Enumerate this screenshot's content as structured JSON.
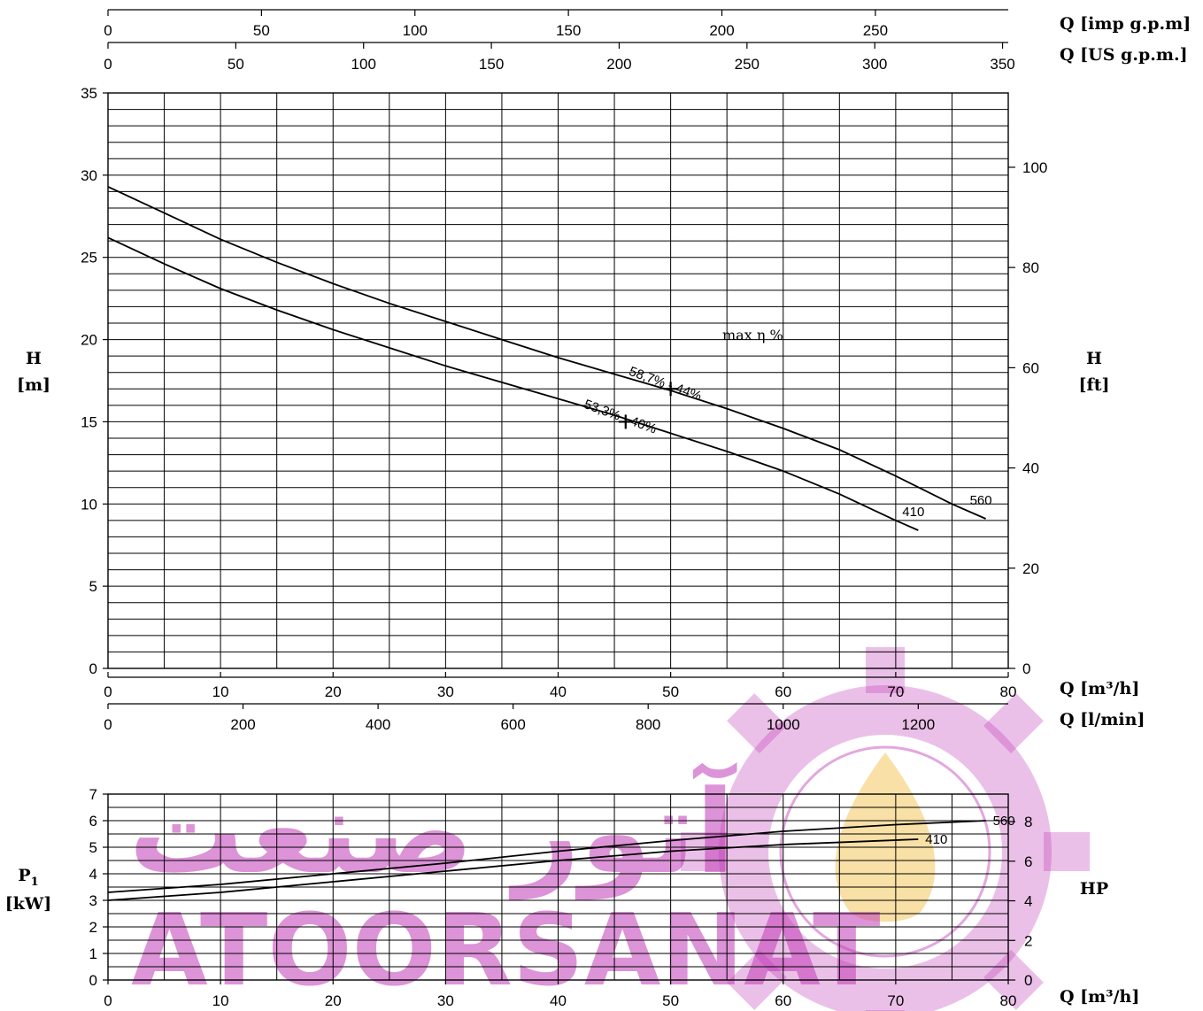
{
  "watermark": {
    "latin": "ATOORSANAT",
    "persian": "آتور صنعت",
    "color": "#c23cb8",
    "flame_color": "#f2c14e"
  },
  "chart_data": [
    {
      "type": "line",
      "x_axis_bottom": {
        "label": "Q [m³/h]",
        "range": [
          0,
          80
        ],
        "ticks": [
          0,
          10,
          20,
          30,
          40,
          50,
          60,
          70,
          80
        ]
      },
      "x_axis_bottom2": {
        "label": "Q [l/min]",
        "ticks": [
          0,
          200,
          400,
          600,
          800,
          1000,
          1200
        ]
      },
      "x_axis_top1": {
        "label": "Q [imp g.p.m]",
        "ticks": [
          0,
          50,
          100,
          150,
          200,
          250
        ]
      },
      "x_axis_top2": {
        "label": "Q [US g.p.m.]",
        "ticks": [
          0,
          50,
          100,
          150,
          200,
          250,
          300,
          350
        ]
      },
      "y_axis_left": {
        "label_line1": "H",
        "label_line2": "[m]",
        "range": [
          0,
          35
        ],
        "ticks": [
          0,
          5,
          10,
          15,
          20,
          25,
          30,
          35
        ]
      },
      "y_axis_right": {
        "label_line1": "H",
        "label_line2": "[ft]",
        "ticks": [
          0,
          20,
          40,
          60,
          80,
          100
        ]
      },
      "grid": true,
      "annotation": "max η %",
      "series": [
        {
          "name": "560",
          "x": [
            0,
            5,
            10,
            15,
            20,
            25,
            30,
            35,
            40,
            45,
            50,
            55,
            60,
            65,
            70,
            75,
            78
          ],
          "y": [
            29.3,
            27.7,
            26.1,
            24.7,
            23.4,
            22.2,
            21.1,
            20.0,
            18.9,
            17.9,
            16.9,
            15.8,
            14.6,
            13.3,
            11.7,
            10.0,
            9.1
          ]
        },
        {
          "name": "410",
          "x": [
            0,
            5,
            10,
            15,
            20,
            25,
            30,
            35,
            40,
            45,
            50,
            55,
            60,
            65,
            70,
            72
          ],
          "y": [
            26.2,
            24.6,
            23.1,
            21.8,
            20.6,
            19.5,
            18.4,
            17.4,
            16.4,
            15.4,
            14.3,
            13.2,
            12.0,
            10.6,
            9.0,
            8.4
          ]
        }
      ],
      "best_efficiency_points": [
        {
          "series": "560",
          "x": 50,
          "y": 17.0,
          "label": "58,7% - 44%"
        },
        {
          "series": "410",
          "x": 46,
          "y": 15.0,
          "label": "53,3% - 40%"
        }
      ]
    },
    {
      "type": "line",
      "x_axis": {
        "label": "Q [m³/h]",
        "range": [
          0,
          80
        ],
        "ticks": [
          0,
          10,
          20,
          30,
          40,
          50,
          60,
          70,
          80
        ]
      },
      "y_axis_left": {
        "label_main": "P",
        "label_sub": "1",
        "label_line2": "[kW]",
        "range": [
          0,
          7
        ],
        "ticks": [
          0,
          1,
          2,
          3,
          4,
          5,
          6,
          7
        ]
      },
      "y_axis_right": {
        "label": "HP",
        "ticks": [
          0,
          2,
          4,
          6,
          8
        ]
      },
      "grid": true,
      "series": [
        {
          "name": "560",
          "x": [
            0,
            10,
            20,
            30,
            40,
            50,
            60,
            70,
            78
          ],
          "y": [
            3.3,
            3.6,
            4.0,
            4.4,
            4.85,
            5.25,
            5.6,
            5.85,
            6.0
          ]
        },
        {
          "name": "410",
          "x": [
            0,
            10,
            20,
            30,
            40,
            50,
            60,
            72
          ],
          "y": [
            3.0,
            3.3,
            3.7,
            4.1,
            4.5,
            4.85,
            5.1,
            5.3
          ]
        }
      ]
    }
  ]
}
